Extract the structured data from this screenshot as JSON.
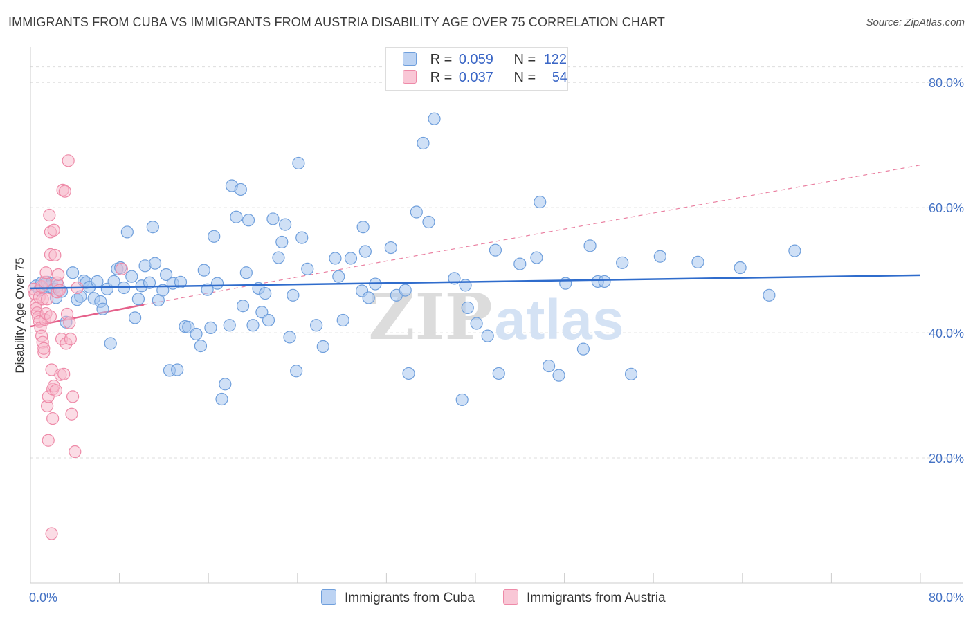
{
  "header": {
    "title": "IMMIGRANTS FROM CUBA VS IMMIGRANTS FROM AUSTRIA DISABILITY AGE OVER 75 CORRELATION CHART",
    "source": "Source: ZipAtlas.com"
  },
  "legend": {
    "rows": [
      {
        "r_label": "R =",
        "r_value": "0.059",
        "n_label": "N =",
        "n_value": "122"
      },
      {
        "r_label": "R =",
        "r_value": "0.037",
        "n_label": "N =",
        "n_value": "54"
      }
    ]
  },
  "watermark": {
    "zip": "ZIP",
    "atlas": "atlas"
  },
  "colors": {
    "cuba_fill": "#a8c6ee",
    "cuba_stroke": "#6f9fdc",
    "cuba_line": "#2f6ccc",
    "austria_fill": "#f7b9cb",
    "austria_stroke": "#ee8aa8",
    "austria_line": "#e5608a",
    "grid": "#dddddd",
    "tick_label": "#4472c4"
  },
  "chart_data": {
    "type": "scatter",
    "title": "IMMIGRANTS FROM CUBA VS IMMIGRANTS FROM AUSTRIA DISABILITY AGE OVER 75 CORRELATION CHART",
    "xlabel": "",
    "ylabel": "Disability Age Over 75",
    "xlim": [
      0,
      80
    ],
    "ylim": [
      0,
      85
    ],
    "x_tick_labels": [
      "0.0%",
      "80.0%"
    ],
    "y_ticks": [
      20,
      40,
      60,
      80
    ],
    "y_tick_labels": [
      "20.0%",
      "40.0%",
      "60.0%",
      "80.0%"
    ],
    "grid": true,
    "legend_position": "top-center",
    "series": [
      {
        "name": "Immigrants from Cuba",
        "R": 0.059,
        "N": 122,
        "trend": {
          "x": [
            0,
            80
          ],
          "y": [
            47.1,
            49.2
          ],
          "style": "solid"
        },
        "points": [
          [
            0.5,
            47.5
          ],
          [
            0.8,
            46.8
          ],
          [
            1.0,
            48.0
          ],
          [
            1.1,
            47.2
          ],
          [
            1.3,
            47.8
          ],
          [
            1.5,
            48.1
          ],
          [
            1.7,
            47.4
          ],
          [
            1.9,
            47.9
          ],
          [
            2.1,
            47.0
          ],
          [
            2.3,
            45.6
          ],
          [
            2.5,
            47.6
          ],
          [
            2.8,
            46.6
          ],
          [
            3.2,
            41.7
          ],
          [
            3.8,
            49.6
          ],
          [
            4.2,
            45.3
          ],
          [
            4.5,
            45.8
          ],
          [
            4.8,
            48.3
          ],
          [
            5.0,
            48.0
          ],
          [
            5.3,
            47.3
          ],
          [
            5.7,
            45.5
          ],
          [
            6.0,
            48.2
          ],
          [
            6.3,
            45.0
          ],
          [
            6.5,
            43.8
          ],
          [
            6.9,
            47.0
          ],
          [
            7.2,
            38.3
          ],
          [
            7.5,
            48.2
          ],
          [
            7.8,
            50.2
          ],
          [
            8.1,
            50.4
          ],
          [
            8.4,
            47.2
          ],
          [
            8.7,
            56.1
          ],
          [
            9.1,
            49.0
          ],
          [
            9.4,
            42.4
          ],
          [
            9.7,
            45.4
          ],
          [
            10.0,
            47.5
          ],
          [
            10.3,
            50.7
          ],
          [
            10.7,
            48.0
          ],
          [
            11.0,
            56.9
          ],
          [
            11.2,
            51.1
          ],
          [
            11.5,
            45.2
          ],
          [
            11.9,
            46.8
          ],
          [
            12.2,
            49.3
          ],
          [
            12.5,
            34.0
          ],
          [
            12.8,
            47.9
          ],
          [
            13.2,
            34.1
          ],
          [
            13.5,
            48.1
          ],
          [
            13.9,
            41.0
          ],
          [
            14.2,
            40.9
          ],
          [
            14.9,
            39.8
          ],
          [
            15.3,
            37.9
          ],
          [
            15.6,
            50.0
          ],
          [
            15.9,
            46.9
          ],
          [
            16.2,
            40.8
          ],
          [
            16.5,
            55.4
          ],
          [
            16.8,
            47.9
          ],
          [
            17.2,
            29.4
          ],
          [
            17.5,
            31.8
          ],
          [
            17.9,
            41.2
          ],
          [
            18.1,
            63.5
          ],
          [
            18.5,
            58.5
          ],
          [
            18.9,
            62.9
          ],
          [
            19.1,
            44.3
          ],
          [
            19.4,
            49.6
          ],
          [
            19.6,
            58.0
          ],
          [
            20.0,
            41.2
          ],
          [
            20.5,
            47.1
          ],
          [
            20.8,
            43.3
          ],
          [
            21.1,
            46.3
          ],
          [
            21.4,
            42.0
          ],
          [
            21.8,
            58.2
          ],
          [
            22.3,
            52.0
          ],
          [
            22.6,
            54.5
          ],
          [
            22.9,
            57.3
          ],
          [
            23.3,
            39.3
          ],
          [
            23.6,
            46.0
          ],
          [
            23.9,
            33.9
          ],
          [
            24.1,
            67.1
          ],
          [
            24.4,
            55.2
          ],
          [
            24.9,
            50.2
          ],
          [
            25.7,
            41.2
          ],
          [
            26.3,
            37.8
          ],
          [
            27.4,
            51.9
          ],
          [
            27.7,
            49.0
          ],
          [
            28.1,
            42.0
          ],
          [
            28.8,
            51.9
          ],
          [
            29.8,
            46.7
          ],
          [
            29.9,
            56.9
          ],
          [
            30.1,
            53.0
          ],
          [
            30.4,
            45.6
          ],
          [
            31.0,
            47.8
          ],
          [
            32.4,
            53.6
          ],
          [
            32.9,
            46.0
          ],
          [
            33.7,
            46.8
          ],
          [
            34.0,
            33.5
          ],
          [
            34.7,
            59.3
          ],
          [
            35.3,
            70.3
          ],
          [
            35.8,
            57.7
          ],
          [
            36.3,
            74.2
          ],
          [
            38.1,
            48.7
          ],
          [
            38.8,
            29.3
          ],
          [
            39.1,
            47.6
          ],
          [
            39.3,
            44.0
          ],
          [
            40.1,
            41.5
          ],
          [
            41.1,
            39.5
          ],
          [
            41.8,
            53.2
          ],
          [
            42.1,
            33.5
          ],
          [
            44.0,
            51.0
          ],
          [
            45.5,
            52.0
          ],
          [
            45.8,
            60.9
          ],
          [
            46.6,
            34.7
          ],
          [
            47.5,
            33.2
          ],
          [
            48.1,
            47.9
          ],
          [
            49.7,
            37.4
          ],
          [
            50.3,
            53.9
          ],
          [
            51.0,
            48.2
          ],
          [
            51.6,
            48.2
          ],
          [
            53.2,
            51.2
          ],
          [
            54.0,
            33.4
          ],
          [
            56.6,
            52.2
          ],
          [
            60.0,
            51.3
          ],
          [
            63.8,
            50.4
          ],
          [
            66.4,
            46.0
          ],
          [
            68.7,
            53.1
          ]
        ]
      },
      {
        "name": "Immigrants from Austria",
        "R": 0.037,
        "N": 54,
        "trend": {
          "x": [
            0,
            10.2
          ],
          "y": [
            41.0,
            44.5
          ],
          "style": "solid",
          "extension": {
            "x": [
              10.2,
              80
            ],
            "y": [
              44.5,
              66.8
            ],
            "style": "dashed"
          }
        },
        "points": [
          [
            0.3,
            47.0
          ],
          [
            0.4,
            46.2
          ],
          [
            0.5,
            44.5
          ],
          [
            0.5,
            43.9
          ],
          [
            0.6,
            43.2
          ],
          [
            0.7,
            42.5
          ],
          [
            0.8,
            41.8
          ],
          [
            0.8,
            45.7
          ],
          [
            0.9,
            40.8
          ],
          [
            1.0,
            47.4
          ],
          [
            1.0,
            39.5
          ],
          [
            1.1,
            38.5
          ],
          [
            1.1,
            45.4
          ],
          [
            1.2,
            36.9
          ],
          [
            1.2,
            37.5
          ],
          [
            1.3,
            42.1
          ],
          [
            1.3,
            48.1
          ],
          [
            1.4,
            43.1
          ],
          [
            1.4,
            49.6
          ],
          [
            1.5,
            28.3
          ],
          [
            1.5,
            45.4
          ],
          [
            1.6,
            22.8
          ],
          [
            1.6,
            29.8
          ],
          [
            1.7,
            58.8
          ],
          [
            1.8,
            52.5
          ],
          [
            1.8,
            56.1
          ],
          [
            1.8,
            42.6
          ],
          [
            1.9,
            34.1
          ],
          [
            1.9,
            7.9
          ],
          [
            2.0,
            26.3
          ],
          [
            2.0,
            31.0
          ],
          [
            2.1,
            56.4
          ],
          [
            2.1,
            31.5
          ],
          [
            2.2,
            52.4
          ],
          [
            2.3,
            30.8
          ],
          [
            2.4,
            48.0
          ],
          [
            2.4,
            46.5
          ],
          [
            2.5,
            49.3
          ],
          [
            2.6,
            46.8
          ],
          [
            2.7,
            33.3
          ],
          [
            2.8,
            39.0
          ],
          [
            2.9,
            62.8
          ],
          [
            3.0,
            33.4
          ],
          [
            3.1,
            62.6
          ],
          [
            3.2,
            38.3
          ],
          [
            3.3,
            43.0
          ],
          [
            3.4,
            67.5
          ],
          [
            3.5,
            41.6
          ],
          [
            3.6,
            39.0
          ],
          [
            3.7,
            27.0
          ],
          [
            3.8,
            29.8
          ],
          [
            4.0,
            21.0
          ],
          [
            4.2,
            47.2
          ],
          [
            8.2,
            50.2
          ]
        ]
      }
    ]
  },
  "bottom_legend": {
    "items": [
      {
        "label": "Immigrants from Cuba"
      },
      {
        "label": "Immigrants from Austria"
      }
    ]
  }
}
